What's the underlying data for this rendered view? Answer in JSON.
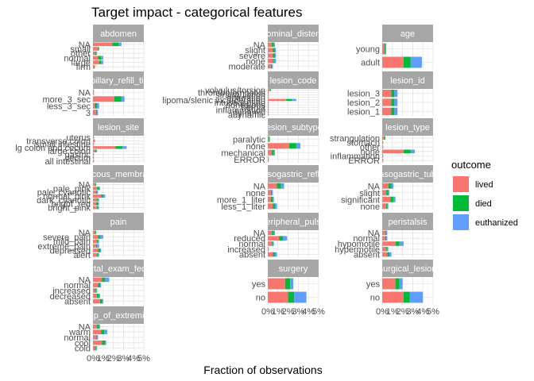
{
  "chart_data": {
    "type": "bar",
    "orientation": "horizontal",
    "stacked": true,
    "title": "Target impact - categorical features",
    "xlabel": "Fraction of observations",
    "ylabel": "",
    "xlim": [
      0,
      0.05
    ],
    "x_ticks": [
      "0%",
      "1%",
      "2%",
      "3%",
      "4%",
      "5%"
    ],
    "grid": true,
    "legend": {
      "title": "outcome",
      "position": "right",
      "entries": [
        {
          "label": "lived",
          "color": "#F8766D"
        },
        {
          "label": "died",
          "color": "#00BA38"
        },
        {
          "label": "euthanized",
          "color": "#619CFF"
        }
      ]
    },
    "panels": [
      {
        "strip": "abdomen",
        "categories": [
          "NA",
          "small",
          "other",
          "normal",
          "large",
          "firm"
        ],
        "values": [
          [
            0.019,
            0.006,
            0.003
          ],
          [
            0.005,
            0.001,
            0.0
          ],
          [
            0.002,
            0.001,
            0.001
          ],
          [
            0.005,
            0.003,
            0.002
          ],
          [
            0.006,
            0.002,
            0.002
          ],
          [
            0.002,
            0.0,
            0.0
          ]
        ]
      },
      {
        "strip": "abdominal_distention",
        "categories": [
          "NA",
          "slight",
          "severe",
          "none",
          "moderate"
        ],
        "values": [
          [
            0.004,
            0.002,
            0.001
          ],
          [
            0.005,
            0.002,
            0.001
          ],
          [
            0.005,
            0.002,
            0.001
          ],
          [
            0.005,
            0.001,
            0.002
          ],
          [
            0.003,
            0.001,
            0.001
          ]
        ]
      },
      {
        "strip": "age",
        "categories": [
          "young",
          "adult"
        ],
        "values": [
          [
            0.002,
            0.001,
            0.001
          ],
          [
            0.021,
            0.007,
            0.011
          ]
        ]
      },
      {
        "strip": "capillary_refill_time",
        "categories": [
          "NA",
          "more_3_sec",
          "less_3_sec",
          "3"
        ],
        "values": [
          [
            0.001,
            0.0,
            0.0
          ],
          [
            0.021,
            0.007,
            0.003
          ],
          [
            0.002,
            0.002,
            0.002
          ],
          [
            0.003,
            0.001,
            0.001
          ]
        ]
      },
      {
        "strip": "lesion_code",
        "categories": [
          "volvulus/torsion",
          "thrombo/embolus",
          "strangulation",
          "obturation",
          "lipoma/slenic incarceration",
          "intussusption",
          "adhesions",
          "hernia",
          "inflammation",
          "dynamic",
          "adynamic"
        ],
        "values": [
          [
            0.002,
            0.001,
            0.0
          ],
          [
            0.001,
            0.0,
            0.0
          ],
          [
            0.001,
            0.0,
            0.0
          ],
          [
            0.001,
            0.0,
            0.0
          ],
          [
            0.018,
            0.006,
            0.004
          ],
          [
            0.001,
            0.0,
            0.0
          ],
          [
            0.001,
            0.0,
            0.0
          ],
          [
            0.001,
            0.0,
            0.0
          ],
          [
            0.001,
            0.0,
            0.0
          ],
          [
            0.001,
            0.0,
            0.0
          ],
          [
            0.001,
            0.0,
            0.0
          ]
        ]
      },
      {
        "strip": "lesion_id",
        "categories": [
          "lesion_3",
          "lesion_2",
          "lesion_1"
        ],
        "values": [
          [
            0.009,
            0.003,
            0.003
          ],
          [
            0.009,
            0.003,
            0.003
          ],
          [
            0.009,
            0.003,
            0.003
          ]
        ]
      },
      {
        "strip": "lesion_site",
        "categories": [
          "uterus",
          "transverse colon",
          "small intestine",
          "lg colon and cecum",
          "large colon",
          "gastric",
          "cecum",
          "all intestinal"
        ],
        "values": [
          [
            0.001,
            0.0,
            0.0
          ],
          [
            0.002,
            0.0,
            0.0
          ],
          [
            0.001,
            0.0,
            0.0
          ],
          [
            0.022,
            0.007,
            0.004
          ],
          [
            0.002,
            0.001,
            0.001
          ],
          [
            0.001,
            0.0,
            0.0
          ],
          [
            0.001,
            0.0,
            0.0
          ],
          [
            0.001,
            0.0,
            0.0
          ]
        ]
      },
      {
        "strip": "lesion_subtype",
        "categories": [
          "paralytic",
          "none",
          "mechanical",
          "ERROR"
        ],
        "values": [
          [
            0.001,
            0.001,
            0.0
          ],
          [
            0.021,
            0.007,
            0.004
          ],
          [
            0.004,
            0.002,
            0.001
          ],
          [
            0.001,
            0.0,
            0.0
          ]
        ]
      },
      {
        "strip": "lesion_type",
        "categories": [
          "strangulation",
          "stomach",
          "other",
          "none",
          "inflammation",
          "ERROR"
        ],
        "values": [
          [
            0.002,
            0.001,
            0.0
          ],
          [
            0.001,
            0.0,
            0.0
          ],
          [
            0.001,
            0.0,
            0.0
          ],
          [
            0.021,
            0.007,
            0.004
          ],
          [
            0.001,
            0.0,
            0.0
          ],
          [
            0.001,
            0.0,
            0.0
          ]
        ]
      },
      {
        "strip": "mucous_membrane",
        "categories": [
          "NA",
          "pale_pink",
          "pale_cyanotic",
          "normal_pink",
          "dark_cyanotic",
          "bright_red",
          "bright_pink"
        ],
        "values": [
          [
            0.002,
            0.001,
            0.0
          ],
          [
            0.004,
            0.002,
            0.001
          ],
          [
            0.003,
            0.001,
            0.001
          ],
          [
            0.008,
            0.002,
            0.002
          ],
          [
            0.004,
            0.001,
            0.001
          ],
          [
            0.003,
            0.002,
            0.001
          ],
          [
            0.004,
            0.001,
            0.001
          ]
        ]
      },
      {
        "strip": "nasogastric_reflux",
        "categories": [
          "NA",
          "none",
          "more_1_liter",
          "less_1_liter"
        ],
        "values": [
          [
            0.009,
            0.004,
            0.003
          ],
          [
            0.003,
            0.001,
            0.001
          ],
          [
            0.003,
            0.002,
            0.001
          ],
          [
            0.005,
            0.002,
            0.002
          ]
        ]
      },
      {
        "strip": "nasogastric_tube",
        "categories": [
          "NA",
          "slight",
          "significant",
          "none"
        ],
        "values": [
          [
            0.006,
            0.003,
            0.002
          ],
          [
            0.004,
            0.002,
            0.001
          ],
          [
            0.008,
            0.003,
            0.002
          ],
          [
            0.004,
            0.001,
            0.001
          ]
        ]
      },
      {
        "strip": "pain",
        "categories": [
          "NA",
          "severe_pain",
          "mild_pain",
          "extreme_pain",
          "depressed",
          "alert"
        ],
        "values": [
          [
            0.002,
            0.001,
            0.0
          ],
          [
            0.005,
            0.002,
            0.003
          ],
          [
            0.004,
            0.001,
            0.001
          ],
          [
            0.003,
            0.001,
            0.002
          ],
          [
            0.005,
            0.002,
            0.001
          ],
          [
            0.004,
            0.001,
            0.001
          ]
        ]
      },
      {
        "strip": "peripheral_pulse",
        "categories": [
          "NA",
          "reduced",
          "normal",
          "increased",
          "absent"
        ],
        "values": [
          [
            0.004,
            0.002,
            0.001
          ],
          [
            0.011,
            0.004,
            0.004
          ],
          [
            0.004,
            0.001,
            0.001
          ],
          [
            0.001,
            0.0,
            0.0
          ],
          [
            0.005,
            0.002,
            0.002
          ]
        ]
      },
      {
        "strip": "peristalsis",
        "categories": [
          "NA",
          "normal",
          "hypomotile",
          "hypermotile",
          "absent"
        ],
        "values": [
          [
            0.003,
            0.001,
            0.001
          ],
          [
            0.003,
            0.001,
            0.001
          ],
          [
            0.013,
            0.004,
            0.004
          ],
          [
            0.004,
            0.001,
            0.001
          ],
          [
            0.005,
            0.002,
            0.002
          ]
        ]
      },
      {
        "strip": "rectal_exam_feces",
        "categories": [
          "NA",
          "normal",
          "increased",
          "decreased",
          "absent"
        ],
        "values": [
          [
            0.009,
            0.003,
            0.004
          ],
          [
            0.005,
            0.002,
            0.001
          ],
          [
            0.002,
            0.001,
            0.001
          ],
          [
            0.004,
            0.002,
            0.001
          ],
          [
            0.007,
            0.002,
            0.001
          ]
        ]
      },
      {
        "strip": "surgery",
        "categories": [
          "yes",
          "no"
        ],
        "values": [
          [
            0.017,
            0.005,
            0.003
          ],
          [
            0.02,
            0.006,
            0.012
          ]
        ]
      },
      {
        "strip": "surgical_lesion",
        "categories": [
          "yes",
          "no"
        ],
        "values": [
          [
            0.013,
            0.004,
            0.003
          ],
          [
            0.021,
            0.006,
            0.013
          ]
        ]
      },
      {
        "strip": "temp_of_extremities",
        "categories": [
          "NA",
          "warm",
          "normal",
          "cool",
          "cold"
        ],
        "values": [
          [
            0.004,
            0.002,
            0.001
          ],
          [
            0.008,
            0.003,
            0.003
          ],
          [
            0.003,
            0.001,
            0.001
          ],
          [
            0.009,
            0.003,
            0.001
          ],
          [
            0.002,
            0.001,
            0.001
          ]
        ]
      }
    ]
  }
}
